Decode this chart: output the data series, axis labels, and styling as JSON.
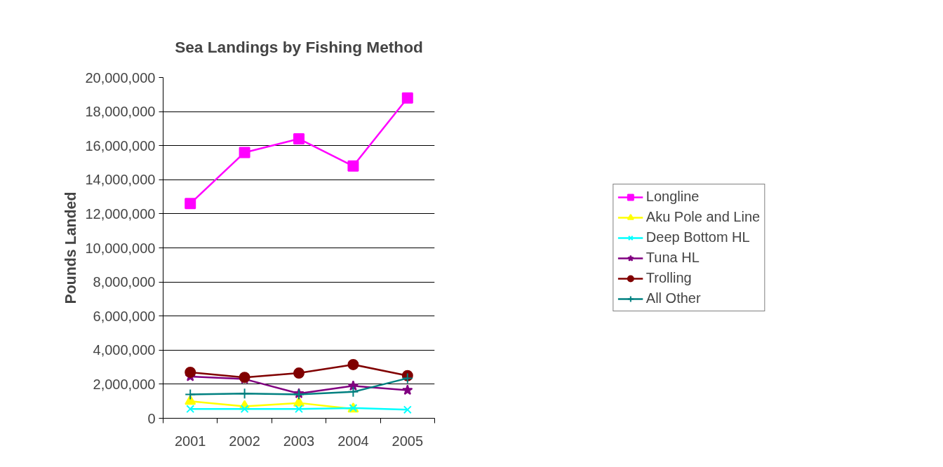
{
  "chart_data": {
    "type": "line",
    "title": "Sea Landings by Fishing Method",
    "ylabel": "Pounds Landed",
    "categories": [
      "2001",
      "2002",
      "2003",
      "2004",
      "2005"
    ],
    "series": [
      {
        "name": "Longline",
        "color": "#ff00ff",
        "marker": "square",
        "values": [
          12600000,
          15600000,
          16400000,
          14800000,
          18800000
        ]
      },
      {
        "name": "Aku Pole and Line",
        "color": "#ffff00",
        "marker": "triangle",
        "values": [
          1000000,
          700000,
          900000,
          550000,
          null
        ]
      },
      {
        "name": "Deep Bottom HL",
        "color": "#00ffff",
        "marker": "x",
        "values": [
          550000,
          550000,
          550000,
          600000,
          500000
        ]
      },
      {
        "name": "Tuna HL",
        "color": "#800080",
        "marker": "star",
        "values": [
          2450000,
          2300000,
          1450000,
          1900000,
          1650000
        ]
      },
      {
        "name": "Trolling",
        "color": "#800000",
        "marker": "circle",
        "values": [
          2700000,
          2400000,
          2650000,
          3150000,
          2500000
        ]
      },
      {
        "name": "All Other",
        "color": "#008080",
        "marker": "cross",
        "values": [
          1400000,
          1450000,
          1400000,
          1550000,
          2350000
        ]
      }
    ],
    "ylim": [
      0,
      20000000
    ],
    "yticks": [
      {
        "value": 0,
        "label": "0"
      },
      {
        "value": 2000000,
        "label": "2,000,000"
      },
      {
        "value": 4000000,
        "label": "4,000,000"
      },
      {
        "value": 6000000,
        "label": "6,000,000"
      },
      {
        "value": 8000000,
        "label": "8,000,000"
      },
      {
        "value": 10000000,
        "label": "10,000,000"
      },
      {
        "value": 12000000,
        "label": "12,000,000"
      },
      {
        "value": 14000000,
        "label": "14,000,000"
      },
      {
        "value": 16000000,
        "label": "16,000,000"
      },
      {
        "value": 18000000,
        "label": "18,000,000"
      },
      {
        "value": 20000000,
        "label": "20,000,000"
      }
    ],
    "grid": "y",
    "legend": "right",
    "line_style": "solid"
  }
}
